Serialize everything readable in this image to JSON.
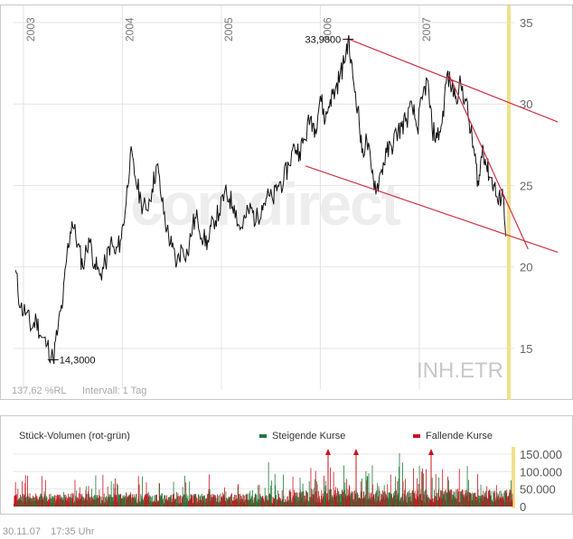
{
  "chart_data": [
    {
      "type": "line",
      "symbol": "INH.ETR",
      "watermark": "comdirect",
      "footer_change": "137,62 %RL",
      "footer_interval": "Intervall: 1 Tag",
      "x_ticks": [
        "2003",
        "2004",
        "2005",
        "2006",
        "2007"
      ],
      "y_ticks": [
        15,
        20,
        25,
        30,
        35
      ],
      "ylim": [
        12.5,
        35.5
      ],
      "xlim": [
        2002.9,
        2007.96
      ],
      "low": {
        "x": 2003.3,
        "y": 14.3,
        "label": "14,3000"
      },
      "high": {
        "x": 2006.3,
        "y": 33.98,
        "label": "33,9800"
      },
      "grid": true,
      "series": [
        {
          "values": [
            [
              2002.92,
              19.8
            ],
            [
              2002.97,
              17.5
            ],
            [
              2003.03,
              17.2
            ],
            [
              2003.08,
              16.2
            ],
            [
              2003.13,
              16.8
            ],
            [
              2003.18,
              15.7
            ],
            [
              2003.24,
              15.2
            ],
            [
              2003.3,
              14.3
            ],
            [
              2003.35,
              16.3
            ],
            [
              2003.4,
              18.0
            ],
            [
              2003.44,
              20.8
            ],
            [
              2003.49,
              22.8
            ],
            [
              2003.55,
              21.4
            ],
            [
              2003.6,
              20.0
            ],
            [
              2003.66,
              21.8
            ],
            [
              2003.72,
              20.2
            ],
            [
              2003.77,
              19.5
            ],
            [
              2003.83,
              20.2
            ],
            [
              2003.88,
              21.5
            ],
            [
              2003.93,
              20.8
            ],
            [
              2003.98,
              21.6
            ],
            [
              2004.03,
              23.5
            ],
            [
              2004.08,
              27.0
            ],
            [
              2004.13,
              25.5
            ],
            [
              2004.19,
              24.0
            ],
            [
              2004.24,
              23.5
            ],
            [
              2004.3,
              24.8
            ],
            [
              2004.35,
              26.3
            ],
            [
              2004.4,
              24.0
            ],
            [
              2004.45,
              22.3
            ],
            [
              2004.5,
              21.2
            ],
            [
              2004.55,
              20.2
            ],
            [
              2004.6,
              21.2
            ],
            [
              2004.66,
              20.8
            ],
            [
              2004.71,
              22.6
            ],
            [
              2004.76,
              23.0
            ],
            [
              2004.82,
              21.7
            ],
            [
              2004.87,
              21.5
            ],
            [
              2004.92,
              22.9
            ],
            [
              2004.98,
              23.3
            ],
            [
              2005.03,
              24.5
            ],
            [
              2005.08,
              24.2
            ],
            [
              2005.13,
              23.8
            ],
            [
              2005.19,
              22.3
            ],
            [
              2005.24,
              23.0
            ],
            [
              2005.3,
              23.6
            ],
            [
              2005.35,
              22.8
            ],
            [
              2005.41,
              23.8
            ],
            [
              2005.46,
              24.3
            ],
            [
              2005.52,
              24.1
            ],
            [
              2005.57,
              25.0
            ],
            [
              2005.63,
              25.3
            ],
            [
              2005.68,
              26.3
            ],
            [
              2005.74,
              27.4
            ],
            [
              2005.79,
              27.1
            ],
            [
              2005.84,
              27.8
            ],
            [
              2005.9,
              29.2
            ],
            [
              2005.95,
              28.5
            ],
            [
              2006.0,
              30.5
            ],
            [
              2006.05,
              29.0
            ],
            [
              2006.1,
              30.3
            ],
            [
              2006.15,
              30.8
            ],
            [
              2006.2,
              31.8
            ],
            [
              2006.24,
              32.5
            ],
            [
              2006.28,
              33.98
            ],
            [
              2006.33,
              31.6
            ],
            [
              2006.38,
              29.8
            ],
            [
              2006.42,
              27.0
            ],
            [
              2006.47,
              27.8
            ],
            [
              2006.52,
              25.8
            ],
            [
              2006.57,
              24.8
            ],
            [
              2006.62,
              26.0
            ],
            [
              2006.67,
              27.0
            ],
            [
              2006.72,
              27.4
            ],
            [
              2006.77,
              28.2
            ],
            [
              2006.82,
              28.6
            ],
            [
              2006.87,
              29.1
            ],
            [
              2006.93,
              29.8
            ],
            [
              2006.98,
              28.5
            ],
            [
              2007.03,
              30.3
            ],
            [
              2007.08,
              31.5
            ],
            [
              2007.13,
              28.5
            ],
            [
              2007.18,
              27.9
            ],
            [
              2007.23,
              28.8
            ],
            [
              2007.28,
              31.8
            ],
            [
              2007.33,
              31.0
            ],
            [
              2007.37,
              30.5
            ],
            [
              2007.42,
              31.2
            ],
            [
              2007.47,
              30.2
            ],
            [
              2007.52,
              28.3
            ],
            [
              2007.56,
              26.8
            ],
            [
              2007.6,
              25.0
            ],
            [
              2007.64,
              27.5
            ],
            [
              2007.68,
              26.2
            ],
            [
              2007.72,
              25.5
            ],
            [
              2007.76,
              25.0
            ],
            [
              2007.8,
              23.8
            ],
            [
              2007.84,
              24.8
            ],
            [
              2007.88,
              22.0
            ]
          ]
        }
      ],
      "trendlines": [
        {
          "x1": 2006.28,
          "y1": 34.0,
          "x2": 2008.4,
          "y2": 28.9
        },
        {
          "x1": 2005.85,
          "y1": 26.2,
          "x2": 2008.4,
          "y2": 20.9
        },
        {
          "x1": 2007.3,
          "y1": 31.8,
          "x2": 2008.1,
          "y2": 21.1
        }
      ],
      "accent_color": "#cc3344",
      "highlight_color": "#f2e08a"
    },
    {
      "type": "bar",
      "title": "Stück-Volumen (rot-grün)",
      "legend": [
        {
          "name": "Steigende Kurse",
          "color": "#1f7a3a"
        },
        {
          "name": "Fallende Kurse",
          "color": "#c8141e"
        }
      ],
      "y_ticks_text": [
        "150.000",
        "100.000",
        "50.000",
        "0"
      ],
      "y_ticks": [
        150000,
        100000,
        50000,
        0
      ],
      "ylim": [
        0,
        160000
      ],
      "volume_seed": 7,
      "bar_count": 1250
    }
  ],
  "timestamp": {
    "date": "30.11.07",
    "time": "17:35 Uhr"
  }
}
